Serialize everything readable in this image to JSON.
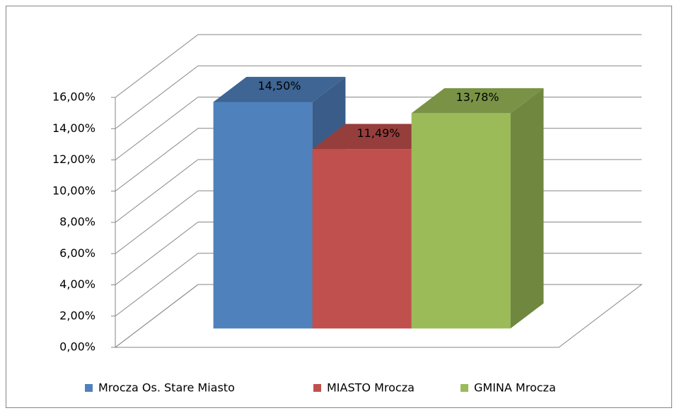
{
  "chart_data": {
    "type": "bar",
    "categories": [
      null
    ],
    "series": [
      {
        "name": "Mrocza Os. Stare Miasto",
        "color": "#4f81bd",
        "values": [
          14.5
        ],
        "value_labels": [
          "14,50%"
        ]
      },
      {
        "name": "MIASTO Mrocza",
        "color": "#c0504d",
        "values": [
          11.49
        ],
        "value_labels": [
          "11,49%"
        ]
      },
      {
        "name": "GMINA Mrocza",
        "color": "#9bbb59",
        "values": [
          13.78
        ],
        "value_labels": [
          "13,78%"
        ]
      }
    ],
    "ylim": [
      0,
      16
    ],
    "yticks": [
      {
        "value": 0,
        "label": "0,00%"
      },
      {
        "value": 2,
        "label": "2,00%"
      },
      {
        "value": 4,
        "label": "4,00%"
      },
      {
        "value": 6,
        "label": "6,00%"
      },
      {
        "value": 8,
        "label": "8,00%"
      },
      {
        "value": 10,
        "label": "10,00%"
      },
      {
        "value": 12,
        "label": "12,00%"
      },
      {
        "value": 14,
        "label": "14,00%"
      },
      {
        "value": 16,
        "label": "16,00%"
      }
    ],
    "grid": true
  }
}
